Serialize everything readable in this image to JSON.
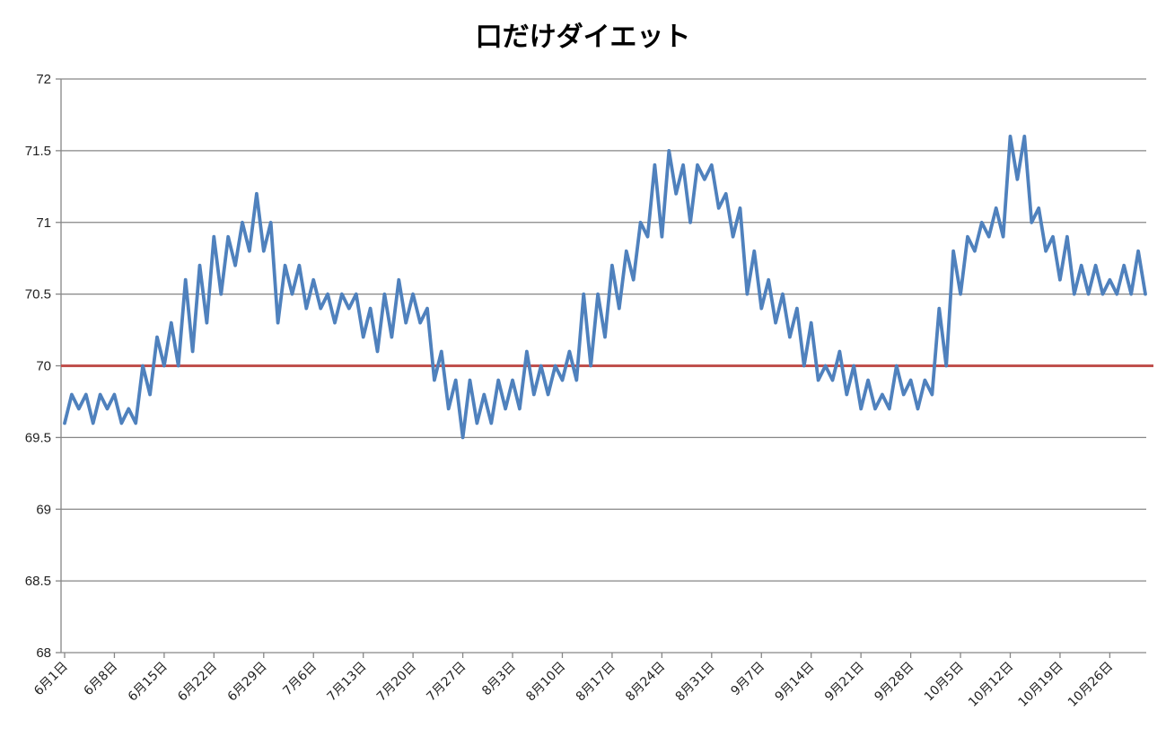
{
  "chart_data": {
    "type": "line",
    "title": "口だけダイエット",
    "xlabel": "",
    "ylabel": "",
    "ylim": [
      68,
      72
    ],
    "y_ticks": [
      "68",
      "68.5",
      "69",
      "69.5",
      "70",
      "70.5",
      "71",
      "71.5",
      "72"
    ],
    "grid": true,
    "legend": "none",
    "x_start": "6月1日",
    "x_tick_labels": [
      "6月1日",
      "6月8日",
      "6月15日",
      "6月22日",
      "6月29日",
      "7月6日",
      "7月13日",
      "7月20日",
      "7月27日",
      "8月3日",
      "8月10日",
      "8月17日",
      "8月24日",
      "8月31日",
      "9月7日",
      "9月14日",
      "9月21日",
      "9月28日",
      "10月5日",
      "10月12日",
      "10月19日",
      "10月26日"
    ],
    "series": [
      {
        "color": "#4f81bd",
        "values": [
          69.6,
          69.8,
          69.7,
          69.8,
          69.6,
          69.8,
          69.7,
          69.8,
          69.6,
          69.7,
          69.6,
          70.0,
          69.8,
          70.2,
          70.0,
          70.3,
          70.0,
          70.6,
          70.1,
          70.7,
          70.3,
          70.9,
          70.5,
          70.9,
          70.7,
          71.0,
          70.8,
          71.2,
          70.8,
          71.0,
          70.3,
          70.7,
          70.5,
          70.7,
          70.4,
          70.6,
          70.4,
          70.5,
          70.3,
          70.5,
          70.4,
          70.5,
          70.2,
          70.4,
          70.1,
          70.5,
          70.2,
          70.6,
          70.3,
          70.5,
          70.3,
          70.4,
          69.9,
          70.1,
          69.7,
          69.9,
          69.5,
          69.9,
          69.6,
          69.8,
          69.6,
          69.9,
          69.7,
          69.9,
          69.7,
          70.1,
          69.8,
          70.0,
          69.8,
          70.0,
          69.9,
          70.1,
          69.9,
          70.5,
          70.0,
          70.5,
          70.2,
          70.7,
          70.4,
          70.8,
          70.6,
          71.0,
          70.9,
          71.4,
          70.9,
          71.5,
          71.2,
          71.4,
          71.0,
          71.4,
          71.3,
          71.4,
          71.1,
          71.2,
          70.9,
          71.1,
          70.5,
          70.8,
          70.4,
          70.6,
          70.3,
          70.5,
          70.2,
          70.4,
          70.0,
          70.3,
          69.9,
          70.0,
          69.9,
          70.1,
          69.8,
          70.0,
          69.7,
          69.9,
          69.7,
          69.8,
          69.7,
          70.0,
          69.8,
          69.9,
          69.7,
          69.9,
          69.8,
          70.4,
          70.0,
          70.8,
          70.5,
          70.9,
          70.8,
          71.0,
          70.9,
          71.1,
          70.9,
          71.6,
          71.3,
          71.6,
          71.0,
          71.1,
          70.8,
          70.9,
          70.6,
          70.9,
          70.5,
          70.7,
          70.5,
          70.7,
          70.5,
          70.6,
          70.5,
          70.7,
          70.5,
          70.8,
          70.5
        ]
      },
      {
        "color": "#c0504d",
        "values": [
          70.0
        ]
      }
    ]
  }
}
